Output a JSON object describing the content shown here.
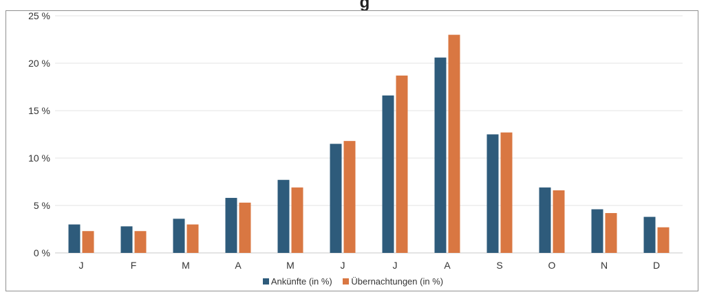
{
  "chart_data": {
    "type": "bar",
    "title": "",
    "title_fragment": "g",
    "xlabel": "",
    "ylabel": "",
    "categories": [
      "J",
      "F",
      "M",
      "A",
      "M",
      "J",
      "J",
      "A",
      "S",
      "O",
      "N",
      "D"
    ],
    "series": [
      {
        "name": "Ankünfte (in %)",
        "color": "#2e5b7b",
        "values": [
          3.0,
          2.8,
          3.6,
          5.8,
          7.7,
          11.5,
          16.6,
          20.6,
          12.5,
          6.9,
          4.6,
          3.8
        ]
      },
      {
        "name": "Übernachtungen (in %)",
        "color": "#d97742",
        "values": [
          2.3,
          2.3,
          3.0,
          5.3,
          6.9,
          11.8,
          18.7,
          23.0,
          12.7,
          6.6,
          4.2,
          2.7
        ]
      }
    ],
    "ylim": [
      0,
      25
    ],
    "yticks": [
      0,
      5,
      10,
      15,
      20,
      25
    ],
    "ytick_labels": [
      "0 %",
      "5 %",
      "10 %",
      "15 %",
      "20 %",
      "25 %"
    ],
    "grid": true,
    "legend_position": "bottom"
  }
}
